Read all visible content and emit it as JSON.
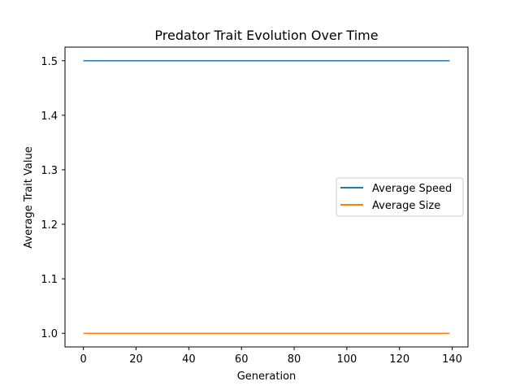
{
  "chart_data": {
    "type": "line",
    "title": "Predator Trait Evolution Over Time",
    "xlabel": "Generation",
    "ylabel": "Average Trait Value",
    "xlim": [
      -7,
      146
    ],
    "ylim": [
      0.975,
      1.525
    ],
    "xticks": [
      0,
      20,
      40,
      60,
      80,
      100,
      120,
      140
    ],
    "yticks": [
      1.0,
      1.1,
      1.2,
      1.3,
      1.4,
      1.5
    ],
    "xtick_labels": [
      "0",
      "20",
      "40",
      "60",
      "80",
      "100",
      "120",
      "140"
    ],
    "ytick_labels": [
      "1.0",
      "1.1",
      "1.2",
      "1.3",
      "1.4",
      "1.5"
    ],
    "grid": false,
    "legend_position": "center-right",
    "series": [
      {
        "name": "Average Speed",
        "color": "#1f77b4",
        "x": [
          0,
          139
        ],
        "y": [
          1.5,
          1.5
        ]
      },
      {
        "name": "Average Size",
        "color": "#ff7f0e",
        "x": [
          0,
          139
        ],
        "y": [
          1.0,
          1.0
        ]
      }
    ]
  }
}
